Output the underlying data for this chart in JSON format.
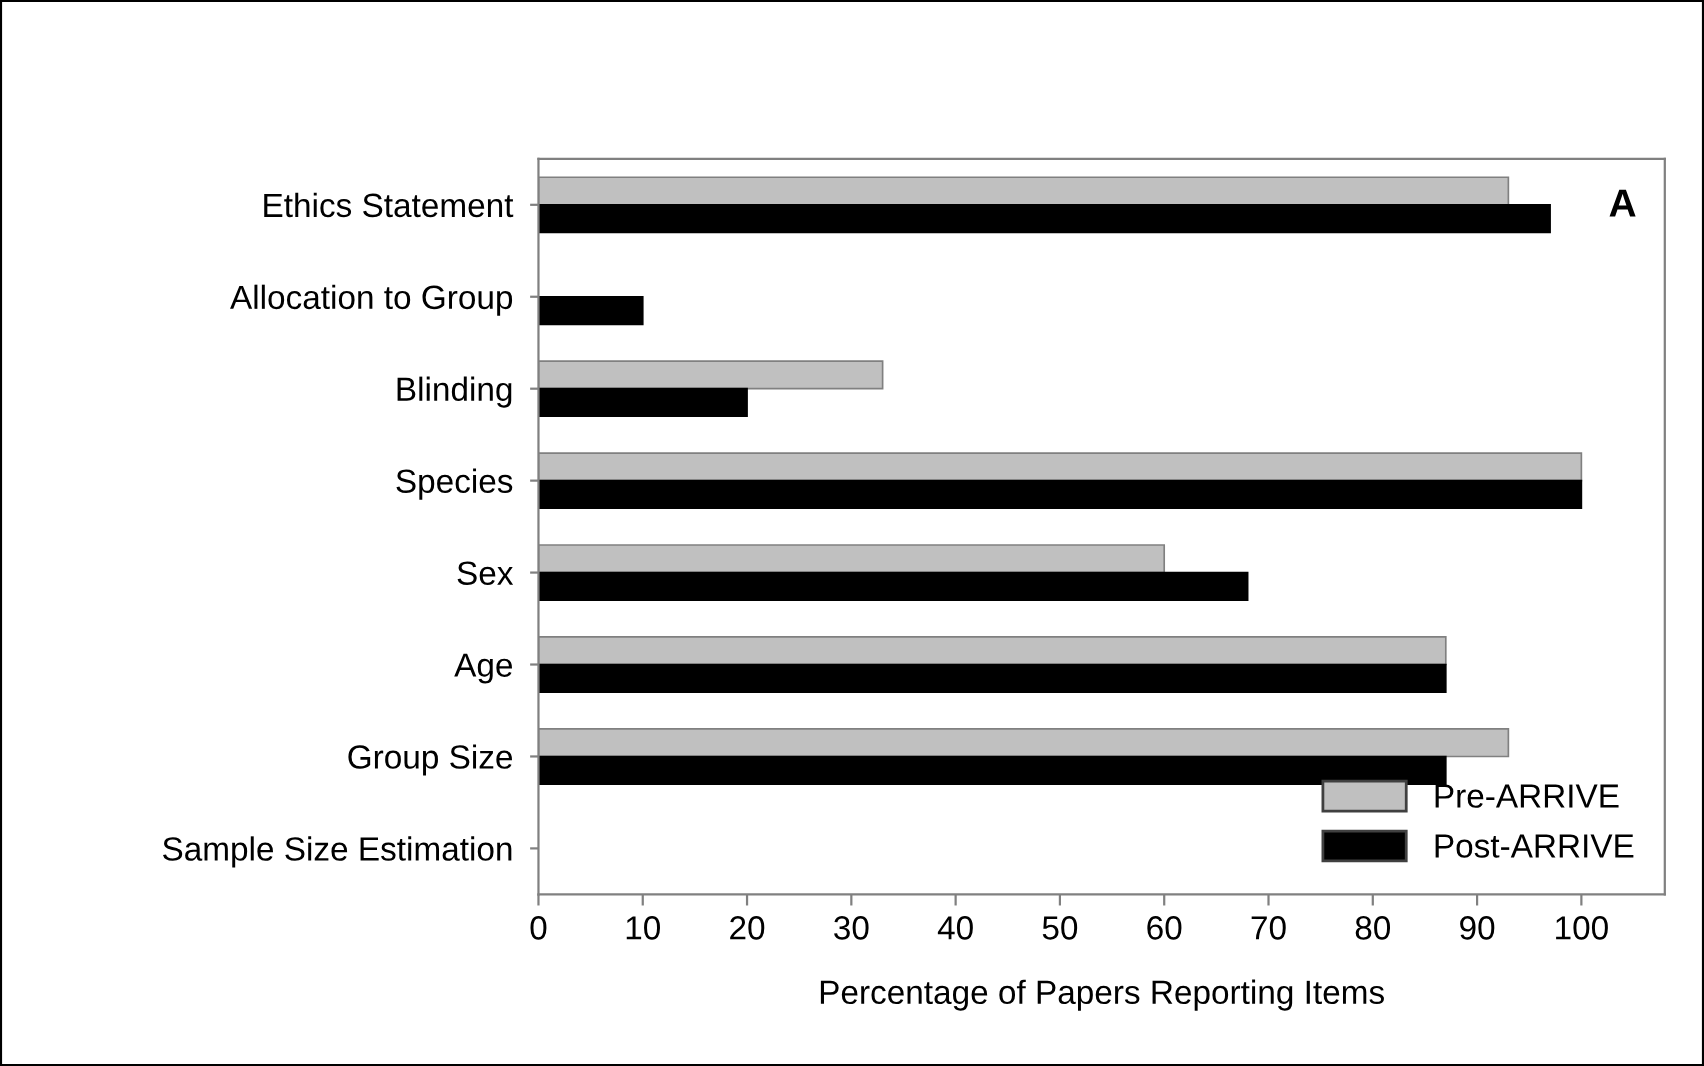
{
  "chart_data": {
    "type": "bar",
    "orientation": "horizontal",
    "xlabel": "Percentage of Papers Reporting Items",
    "categories": [
      "Ethics Statement",
      "Allocation to Group",
      "Blinding",
      "Species",
      "Sex",
      "Age",
      "Group Size",
      "Sample Size Estimation"
    ],
    "series": [
      {
        "name": "Pre-ARRIVE",
        "color": "#c0c0c0",
        "values": [
          93,
          0,
          33,
          100,
          60,
          87,
          93,
          0
        ]
      },
      {
        "name": "Post-ARRIVE",
        "color": "#000000",
        "values": [
          97,
          10,
          20,
          100,
          68,
          87,
          87,
          0
        ]
      }
    ],
    "xlim": [
      0,
      108
    ],
    "xticks": [
      0,
      10,
      20,
      30,
      40,
      50,
      60,
      70,
      80,
      90,
      100
    ],
    "annotations": [
      "A"
    ],
    "legend": "bottom right",
    "grid": false
  }
}
